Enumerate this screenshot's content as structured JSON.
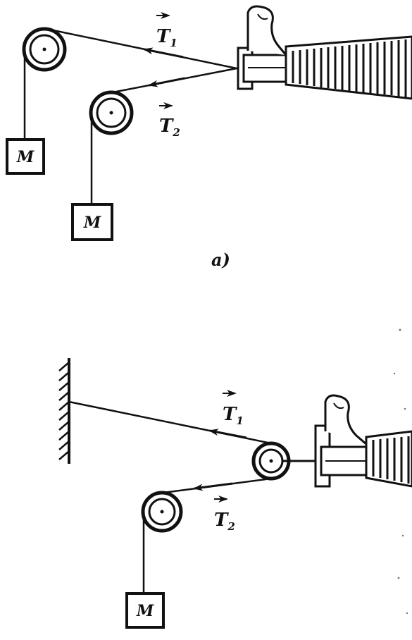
{
  "panel_a": {
    "label_t1_base": "T",
    "label_t1_sub": "1",
    "label_t2_base": "T",
    "label_t2_sub": "2",
    "mass_upper": "M",
    "mass_lower": "M",
    "caption": "a)"
  },
  "panel_b": {
    "label_t1_base": "T",
    "label_t1_sub": "1",
    "label_t2_base": "T",
    "label_t2_sub": "2",
    "mass": "M"
  }
}
